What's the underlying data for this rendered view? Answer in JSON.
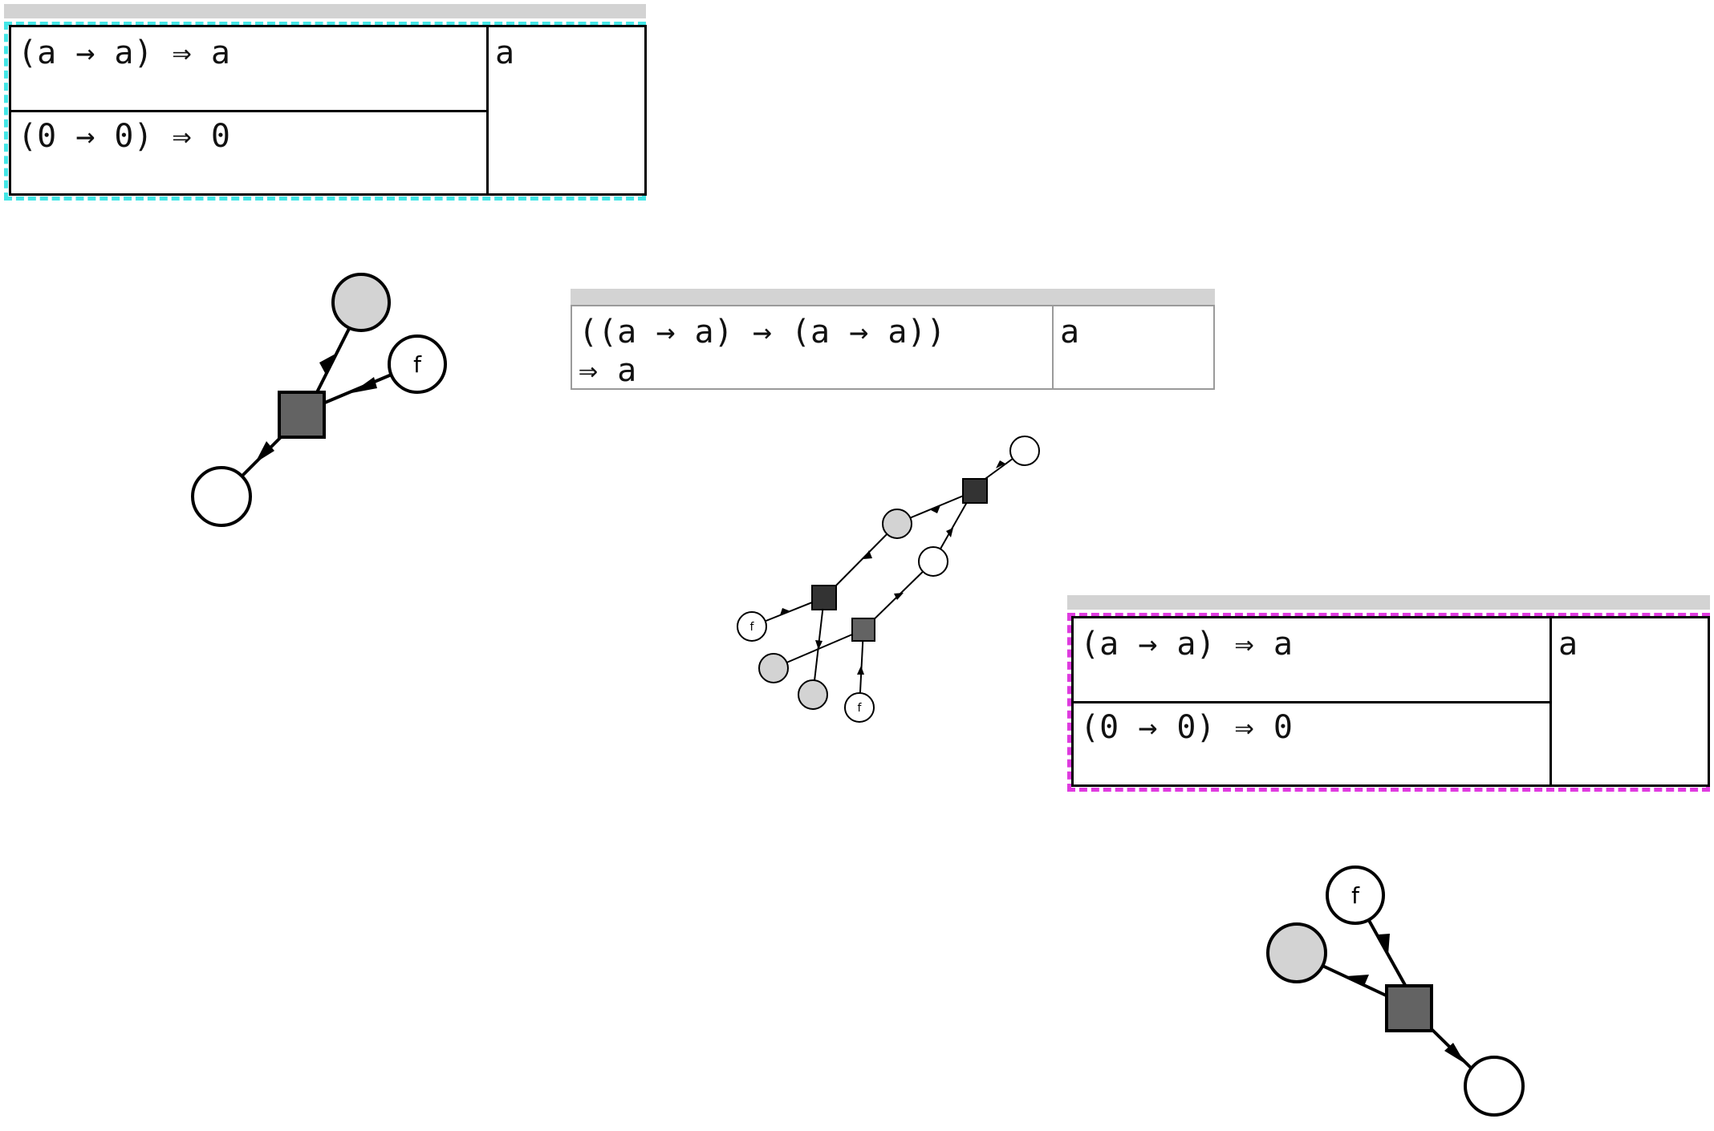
{
  "panels": {
    "top_left": {
      "rows": [
        "(a → a) ⇒ a",
        "(0 → 0) ⇒ 0"
      ],
      "result": "a",
      "selection_color": "#44e6e6"
    },
    "center": {
      "rows": [
        "((a → a) → (a → a))",
        "⇒ a"
      ],
      "result": "a"
    },
    "bottom_right": {
      "rows": [
        "(a → a) ⇒ a",
        "(0 → 0) ⇒ 0"
      ],
      "result": "a",
      "selection_color": "#e03ce0"
    }
  },
  "graphs": {
    "left": {
      "label": "f"
    },
    "center": {
      "labels": [
        "f",
        "f"
      ]
    },
    "right": {
      "label": "f"
    }
  },
  "colors": {
    "node_gray": "#d3d3d3",
    "box_dark": "#636363",
    "box_darker": "#333333"
  }
}
